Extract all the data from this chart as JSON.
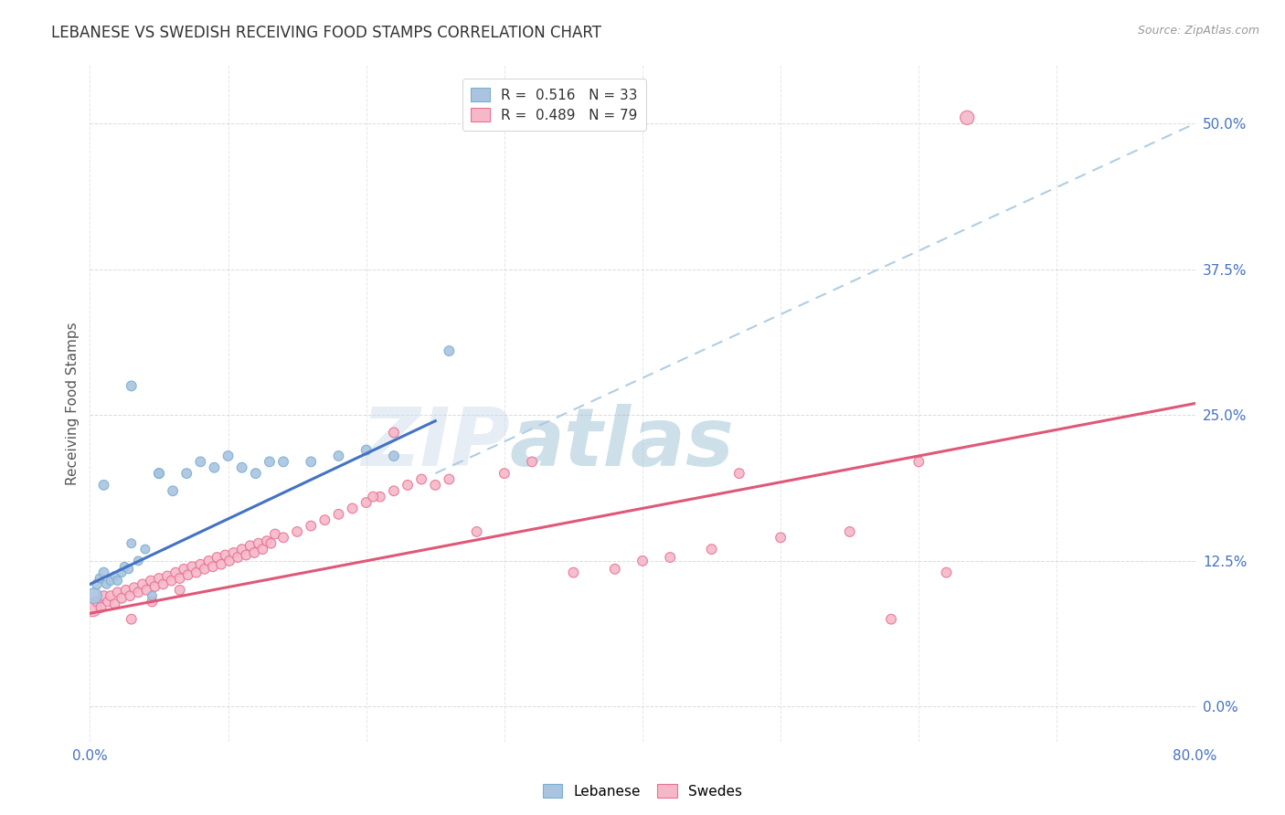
{
  "title": "LEBANESE VS SWEDISH RECEIVING FOOD STAMPS CORRELATION CHART",
  "source": "Source: ZipAtlas.com",
  "ylabel_label": "Receiving Food Stamps",
  "watermark_zip": "ZIP",
  "watermark_atlas": "atlas",
  "blue_color": "#aac4e0",
  "blue_edge_color": "#7aaed0",
  "pink_color": "#f5b8c8",
  "pink_edge_color": "#e87095",
  "blue_line_color": "#4472c4",
  "pink_line_color": "#e05878",
  "dashed_line_color": "#a8c8e0",
  "bg_color": "#ffffff",
  "grid_color": "#cccccc",
  "tick_color": "#4472c4",
  "title_color": "#333333",
  "ylabel_color": "#555555",
  "source_color": "#999999",
  "font_size_title": 12,
  "font_size_ticks": 11,
  "font_size_legend": 11,
  "font_size_ylabel": 11,
  "xmin": 0,
  "xmax": 80,
  "ymin": -3,
  "ymax": 55,
  "yticks": [
    0.0,
    12.5,
    25.0,
    37.5,
    50.0
  ],
  "xticks_show": [
    0,
    80
  ],
  "leb_x": [
    0.3,
    0.5,
    0.7,
    1.0,
    1.2,
    1.5,
    1.8,
    2.0,
    2.3,
    2.5,
    2.8,
    3.0,
    3.5,
    4.0,
    4.5,
    5.0,
    6.0,
    7.0,
    8.0,
    9.0,
    10.0,
    11.0,
    12.0,
    13.0,
    14.0,
    16.0,
    18.0,
    20.0,
    22.0,
    26.0,
    1.0,
    3.0,
    5.0
  ],
  "leb_y": [
    9.5,
    10.5,
    11.0,
    11.5,
    10.5,
    10.8,
    11.2,
    10.8,
    11.5,
    12.0,
    11.8,
    14.0,
    12.5,
    13.5,
    9.5,
    20.0,
    18.5,
    20.0,
    21.0,
    20.5,
    21.5,
    20.5,
    20.0,
    21.0,
    21.0,
    21.0,
    21.5,
    22.0,
    21.5,
    30.5,
    19.0,
    27.5,
    20.0
  ],
  "leb_sizes": [
    150,
    60,
    50,
    60,
    50,
    50,
    50,
    50,
    50,
    50,
    50,
    50,
    50,
    50,
    50,
    60,
    60,
    60,
    60,
    60,
    60,
    60,
    60,
    60,
    60,
    60,
    60,
    60,
    60,
    60,
    60,
    60,
    60
  ],
  "swe_x": [
    0.2,
    0.5,
    0.8,
    1.0,
    1.3,
    1.5,
    1.8,
    2.0,
    2.3,
    2.6,
    2.9,
    3.2,
    3.5,
    3.8,
    4.1,
    4.4,
    4.7,
    5.0,
    5.3,
    5.6,
    5.9,
    6.2,
    6.5,
    6.8,
    7.1,
    7.4,
    7.7,
    8.0,
    8.3,
    8.6,
    8.9,
    9.2,
    9.5,
    9.8,
    10.1,
    10.4,
    10.7,
    11.0,
    11.3,
    11.6,
    11.9,
    12.2,
    12.5,
    12.8,
    13.1,
    13.4,
    14.0,
    15.0,
    16.0,
    17.0,
    18.0,
    19.0,
    20.0,
    21.0,
    22.0,
    23.0,
    24.0,
    25.0,
    26.0,
    28.0,
    30.0,
    32.0,
    35.0,
    38.0,
    40.0,
    42.0,
    45.0,
    47.0,
    50.0,
    55.0,
    58.0,
    60.0,
    62.0,
    63.5,
    3.0,
    4.5,
    6.5,
    20.5,
    22.0
  ],
  "swe_y": [
    8.5,
    9.0,
    8.5,
    9.5,
    9.0,
    9.5,
    8.8,
    9.8,
    9.3,
    10.0,
    9.5,
    10.2,
    9.8,
    10.5,
    10.0,
    10.8,
    10.3,
    11.0,
    10.5,
    11.2,
    10.8,
    11.5,
    11.0,
    11.8,
    11.3,
    12.0,
    11.5,
    12.2,
    11.8,
    12.5,
    12.0,
    12.8,
    12.2,
    13.0,
    12.5,
    13.2,
    12.8,
    13.5,
    13.0,
    13.8,
    13.2,
    14.0,
    13.5,
    14.2,
    14.0,
    14.8,
    14.5,
    15.0,
    15.5,
    16.0,
    16.5,
    17.0,
    17.5,
    18.0,
    18.5,
    19.0,
    19.5,
    19.0,
    19.5,
    15.0,
    20.0,
    21.0,
    11.5,
    11.8,
    12.5,
    12.8,
    13.5,
    20.0,
    14.5,
    15.0,
    7.5,
    21.0,
    11.5,
    50.5,
    7.5,
    9.0,
    10.0,
    18.0,
    23.5
  ],
  "swe_sizes": [
    200,
    60,
    60,
    60,
    60,
    60,
    60,
    60,
    60,
    60,
    60,
    60,
    60,
    60,
    60,
    60,
    60,
    60,
    60,
    60,
    60,
    60,
    60,
    60,
    60,
    60,
    60,
    60,
    60,
    60,
    60,
    60,
    60,
    60,
    60,
    60,
    60,
    60,
    60,
    60,
    60,
    60,
    60,
    60,
    60,
    60,
    60,
    60,
    60,
    60,
    60,
    60,
    60,
    60,
    60,
    60,
    60,
    60,
    60,
    60,
    60,
    60,
    60,
    60,
    60,
    60,
    60,
    60,
    60,
    60,
    60,
    60,
    60,
    120,
    60,
    60,
    60,
    60,
    60
  ],
  "leb_line_x": [
    0,
    25
  ],
  "leb_line_y": [
    10.5,
    24.5
  ],
  "swe_line_x": [
    0,
    80
  ],
  "swe_line_y": [
    8.0,
    26.0
  ],
  "dash_line_x": [
    25,
    80
  ],
  "dash_line_y": [
    20.0,
    50.0
  ]
}
